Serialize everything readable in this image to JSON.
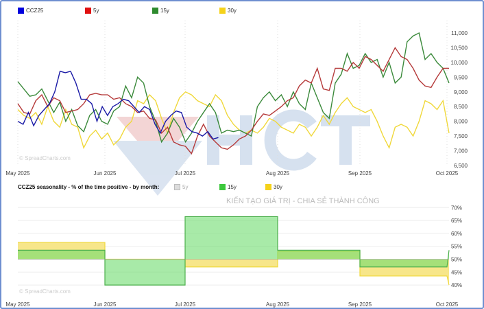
{
  "colors": {
    "CCZ25": "#1a1aa6",
    "5y": "#b53a3a",
    "15y": "#3b8a3b",
    "30y": "#f0d83a",
    "frame": "#6f8fd0"
  },
  "watermark": {
    "logo": "HCT",
    "slogan": "KIẾN TẠO GIÁ TRỊ - CHIA SẺ THÀNH CÔNG",
    "credit1": "© SpreadCharts.com",
    "credit2": "© SpreadCharts.com"
  },
  "chart_data": [
    {
      "type": "line",
      "title": "",
      "legend": [
        "CCZ25",
        "5y",
        "15y",
        "30y"
      ],
      "legend_position": "top-left",
      "x_ticks": [
        "May 2025",
        "Jun 2025",
        "Jul 2025",
        "Aug 2025",
        "Sep 2025",
        "Oct 2025"
      ],
      "y_ticks": [
        "6,500",
        "7,000",
        "7,500",
        "8,000",
        "8,500",
        "9,000",
        "9,500",
        "10,000",
        "10,500",
        "11,000"
      ],
      "ylim": [
        6500,
        11000
      ],
      "grid": true,
      "series": [
        {
          "name": "CCZ25",
          "span": [
            0,
            0.465
          ],
          "values": [
            8000,
            7900,
            8300,
            7850,
            8200,
            8400,
            8600,
            9000,
            9700,
            9650,
            9700,
            9300,
            8750,
            8750,
            8600,
            8000,
            8500,
            8200,
            8500,
            8600,
            8750,
            8700,
            8500,
            8300,
            8500,
            8400,
            7900,
            7600,
            8000,
            8200,
            8350,
            8300,
            7800,
            7650,
            7600,
            7500,
            7650,
            7400,
            7450
          ]
        },
        {
          "name": "5y",
          "span": [
            0,
            1
          ],
          "values": [
            8600,
            8300,
            8250,
            8700,
            8900,
            8500,
            8800,
            8700,
            8300,
            8350,
            8400,
            8600,
            8900,
            8950,
            8900,
            8900,
            8750,
            8800,
            8600,
            8500,
            8300,
            8350,
            8100,
            8050,
            7600,
            7800,
            7300,
            7200,
            7150,
            6900,
            7500,
            7900,
            7500,
            7300,
            7100,
            7050,
            7200,
            7400,
            7500,
            7700,
            8000,
            8250,
            8200,
            8350,
            8500,
            8700,
            8800,
            9200,
            9400,
            9300,
            9800,
            9100,
            9050,
            9800,
            9800,
            9700,
            10000,
            9800,
            10200,
            10100,
            9900,
            9700,
            10100,
            10500,
            10200,
            10100,
            9800,
            9400,
            9200,
            9150,
            9500,
            9800,
            9800
          ]
        },
        {
          "name": "15y",
          "span": [
            0,
            1
          ],
          "values": [
            9350,
            9100,
            8850,
            8900,
            9100,
            8700,
            8300,
            8650,
            8000,
            8400,
            7850,
            7650,
            8200,
            8400,
            8000,
            7900,
            8350,
            8500,
            9200,
            8800,
            9500,
            9300,
            8500,
            8000,
            7300,
            7600,
            8100,
            7800,
            7300,
            7600,
            8000,
            8300,
            8600,
            8300,
            7600,
            7700,
            7650,
            7700,
            7600,
            7500,
            8500,
            8800,
            9000,
            8700,
            8900,
            8500,
            9000,
            8600,
            8400,
            9300,
            8800,
            8300,
            8100,
            9300,
            9600,
            10300,
            9800,
            9900,
            10300,
            10000,
            10100,
            9500,
            10000,
            9300,
            9500,
            10700,
            10900,
            11000,
            10100,
            10300,
            10000,
            9800,
            9300
          ]
        },
        {
          "name": "30y",
          "span": [
            0,
            1
          ],
          "values": [
            8400,
            8200,
            8100,
            8300,
            7900,
            8500,
            8000,
            7800,
            8400,
            7900,
            7800,
            7100,
            7500,
            7700,
            7400,
            7600,
            7200,
            7400,
            7800,
            8000,
            8700,
            8600,
            8900,
            8700,
            8100,
            7600,
            8300,
            8800,
            9000,
            8900,
            8700,
            8600,
            8500,
            8900,
            8700,
            8200,
            7900,
            7700,
            7600,
            7700,
            7600,
            7800,
            8100,
            8000,
            7800,
            7700,
            7600,
            7900,
            7800,
            7500,
            7800,
            8200,
            7900,
            8300,
            8600,
            8800,
            8500,
            8400,
            8300,
            8400,
            8000,
            7500,
            7100,
            7800,
            7900,
            7800,
            7500,
            8000,
            8700,
            8600,
            8400,
            8700,
            7600
          ]
        }
      ]
    },
    {
      "type": "area",
      "title": "CCZ25 seasonality - % of the time positive - by month:",
      "legend": [
        "5y",
        "15y",
        "30y"
      ],
      "legend_disabled": [
        "5y"
      ],
      "x_ticks": [
        "May 2025",
        "Jun 2025",
        "Jul 2025",
        "Aug 2025",
        "Sep 2025",
        "Oct 2025"
      ],
      "y_ticks": [
        "40%",
        "45%",
        "50%",
        "55%",
        "60%",
        "65%",
        "70%"
      ],
      "ylim": [
        38,
        72
      ],
      "baseline": 50,
      "months": [
        "May",
        "Jun",
        "Jul",
        "Aug",
        "Sep"
      ],
      "series": [
        {
          "name": "30y",
          "values": [
            56.5,
            50,
            47,
            53,
            43.5
          ],
          "end": 40
        },
        {
          "name": "15y",
          "values": [
            53.5,
            40,
            66.5,
            53.5,
            47
          ],
          "end": 53.5
        }
      ]
    }
  ]
}
